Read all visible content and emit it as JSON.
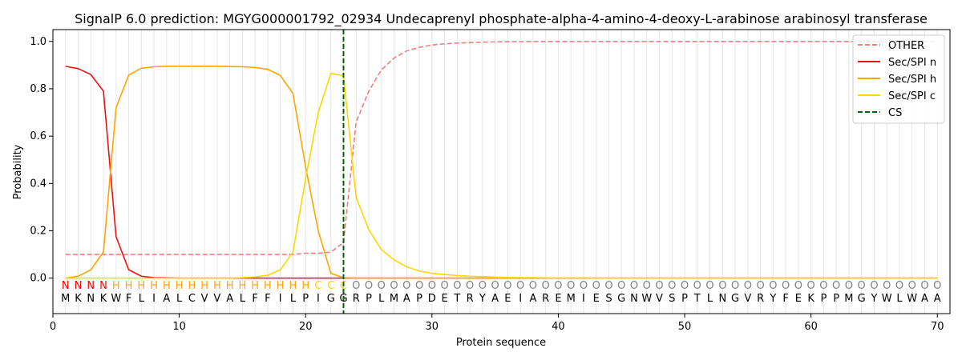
{
  "chart_data": {
    "type": "line",
    "title": "SignalP 6.0 prediction: MGYG000001792_02934 Undecaprenyl phosphate-alpha-4-amino-4-deoxy-L-arabinose arabinosyl transferase",
    "xlabel": "Protein sequence",
    "ylabel": "Probability",
    "xlim": [
      0,
      71
    ],
    "ylim": [
      -0.15,
      1.05
    ],
    "xticks": [
      0,
      10,
      20,
      30,
      40,
      50,
      60,
      70
    ],
    "yticks": [
      "0.0",
      "0.2",
      "0.4",
      "0.6",
      "0.8",
      "1.0"
    ],
    "grid": "vertical lines at each residue",
    "legend_position": "top-right",
    "sequence": [
      "M",
      "K",
      "N",
      "K",
      "W",
      "F",
      "L",
      "I",
      "A",
      "L",
      "C",
      "V",
      "V",
      "A",
      "L",
      "F",
      "F",
      "I",
      "L",
      "P",
      "I",
      "G",
      "G",
      "R",
      "P",
      "L",
      "M",
      "A",
      "P",
      "D",
      "E",
      "T",
      "R",
      "Y",
      "A",
      "E",
      "I",
      "A",
      "R",
      "E",
      "M",
      "I",
      "E",
      "S",
      "G",
      "N",
      "W",
      "V",
      "S",
      "P",
      "T",
      "L",
      "N",
      "G",
      "V",
      "R",
      "Y",
      "F",
      "E",
      "K",
      "P",
      "P",
      "M",
      "G",
      "Y",
      "W",
      "L",
      "W",
      "A",
      "A"
    ],
    "region_labels": [
      "N",
      "N",
      "N",
      "N",
      "H",
      "H",
      "H",
      "H",
      "H",
      "H",
      "H",
      "H",
      "H",
      "H",
      "H",
      "H",
      "H",
      "H",
      "H",
      "H",
      "C",
      "C",
      "C",
      "O",
      "O",
      "O",
      "O",
      "O",
      "O",
      "O",
      "O",
      "O",
      "O",
      "O",
      "O",
      "O",
      "O",
      "O",
      "O",
      "O",
      "O",
      "O",
      "O",
      "O",
      "O",
      "O",
      "O",
      "O",
      "O",
      "O",
      "O",
      "O",
      "O",
      "O",
      "O",
      "O",
      "O",
      "O",
      "O",
      "O",
      "O",
      "O",
      "O",
      "O",
      "O",
      "O",
      "O",
      "O",
      "O",
      "O"
    ],
    "region_colors": {
      "N": "#ff0000",
      "H": "#ffa500",
      "C": "#ffd700",
      "O": "#808080"
    },
    "cleavage_site": 23,
    "series": [
      {
        "name": "OTHER",
        "color": "#f08080",
        "dash": true,
        "values": [
          0.1,
          0.1,
          0.1,
          0.1,
          0.1,
          0.1,
          0.1,
          0.1,
          0.1,
          0.1,
          0.1,
          0.1,
          0.1,
          0.1,
          0.1,
          0.1,
          0.1,
          0.1,
          0.1,
          0.105,
          0.105,
          0.11,
          0.15,
          0.66,
          0.79,
          0.88,
          0.93,
          0.96,
          0.975,
          0.985,
          0.99,
          0.993,
          0.995,
          0.997,
          0.998,
          0.999,
          0.999,
          1.0,
          1.0,
          1.0,
          1.0,
          1.0,
          1.0,
          1.0,
          1.0,
          1.0,
          1.0,
          1.0,
          1.0,
          1.0,
          1.0,
          1.0,
          1.0,
          1.0,
          1.0,
          1.0,
          1.0,
          1.0,
          1.0,
          1.0,
          1.0,
          1.0,
          1.0,
          1.0,
          1.0,
          1.0,
          1.0,
          1.0,
          1.0,
          1.0
        ]
      },
      {
        "name": "Sec/SPI n",
        "color": "#ee1111",
        "dash": false,
        "values": [
          0.895,
          0.885,
          0.86,
          0.79,
          0.175,
          0.035,
          0.008,
          0.002,
          0.001,
          0,
          0,
          0,
          0,
          0,
          0,
          0,
          0,
          0,
          0,
          0,
          0,
          0,
          0,
          0,
          0,
          0,
          0,
          0,
          0,
          0,
          0,
          0,
          0,
          0,
          0,
          0,
          0,
          0,
          0,
          0,
          0,
          0,
          0,
          0,
          0,
          0,
          0,
          0,
          0,
          0,
          0,
          0,
          0,
          0,
          0,
          0,
          0,
          0,
          0,
          0,
          0,
          0,
          0,
          0,
          0,
          0,
          0,
          0,
          0,
          0
        ]
      },
      {
        "name": "Sec/SPI h",
        "color": "#ffa500",
        "dash": false,
        "values": [
          0.0,
          0.008,
          0.035,
          0.11,
          0.72,
          0.858,
          0.887,
          0.893,
          0.895,
          0.895,
          0.895,
          0.895,
          0.895,
          0.894,
          0.893,
          0.89,
          0.882,
          0.856,
          0.78,
          0.47,
          0.2,
          0.02,
          0.002,
          0,
          0,
          0,
          0,
          0,
          0,
          0,
          0,
          0,
          0,
          0,
          0,
          0,
          0,
          0,
          0,
          0,
          0,
          0,
          0,
          0,
          0,
          0,
          0,
          0,
          0,
          0,
          0,
          0,
          0,
          0,
          0,
          0,
          0,
          0,
          0,
          0,
          0,
          0,
          0,
          0,
          0,
          0,
          0,
          0,
          0,
          0
        ]
      },
      {
        "name": "Sec/SPI c",
        "color": "#ffd700",
        "dash": false,
        "values": [
          0,
          0,
          0,
          0,
          0,
          0,
          0,
          0,
          0,
          0,
          0,
          0,
          0,
          0,
          0.002,
          0.005,
          0.012,
          0.035,
          0.11,
          0.42,
          0.7,
          0.865,
          0.855,
          0.34,
          0.205,
          0.12,
          0.077,
          0.048,
          0.03,
          0.02,
          0.015,
          0.011,
          0.008,
          0.006,
          0.004,
          0.003,
          0.002,
          0.002,
          0.001,
          0.001,
          0.001,
          0.001,
          0,
          0,
          0,
          0,
          0,
          0,
          0,
          0,
          0,
          0,
          0,
          0,
          0,
          0,
          0,
          0,
          0,
          0,
          0,
          0,
          0,
          0,
          0,
          0,
          0,
          0,
          0,
          0
        ]
      }
    ],
    "legend": [
      {
        "label": "OTHER",
        "color": "#f08080",
        "dash": true
      },
      {
        "label": "Sec/SPI n",
        "color": "#ee1111",
        "dash": false
      },
      {
        "label": "Sec/SPI h",
        "color": "#ffa500",
        "dash": false
      },
      {
        "label": "Sec/SPI c",
        "color": "#ffd700",
        "dash": false
      },
      {
        "label": "CS",
        "color": "#006400",
        "dash": true
      }
    ]
  }
}
